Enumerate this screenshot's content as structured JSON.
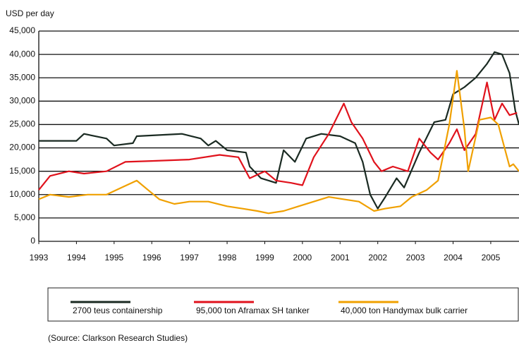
{
  "chart_data": {
    "type": "line",
    "y_label": "USD per day",
    "source": "(Source: Clarkson Research Studies)",
    "xlim": [
      1993,
      2005.75
    ],
    "xticks": [
      1993,
      1994,
      1995,
      1996,
      1997,
      1998,
      1999,
      2000,
      2001,
      2002,
      2003,
      2004,
      2005
    ],
    "ylim": [
      0,
      45000
    ],
    "yticks": [
      0,
      {
        "value": 5000,
        "label": "5,000"
      },
      {
        "value": 10000,
        "label": "10,000"
      },
      {
        "value": 15000,
        "label": "15,000"
      },
      {
        "value": 20000,
        "label": "20,000"
      },
      {
        "value": 25000,
        "label": "25,000"
      },
      {
        "value": 30000,
        "label": "30,000"
      },
      {
        "value": 35000,
        "label": "35,000"
      },
      {
        "value": 40000,
        "label": "40,000"
      },
      {
        "value": 45000,
        "label": "45,000"
      }
    ],
    "grid": true,
    "legend": "bottom",
    "series": [
      {
        "name": "2700 teus containership",
        "color": "#1a2a22",
        "x": [
          1993,
          1994,
          1994.2,
          1994.8,
          1995,
          1995.5,
          1995.6,
          1996.8,
          1997.3,
          1997.5,
          1997.7,
          1998,
          1998.5,
          1998.6,
          1998.9,
          1999.3,
          1999.5,
          1999.8,
          2000.1,
          2000.5,
          2001,
          2001.4,
          2001.6,
          2001.8,
          2002,
          2002.2,
          2002.5,
          2002.7,
          2003.1,
          2003.5,
          2003.8,
          2004,
          2004.3,
          2004.6,
          2004.9,
          2005.1,
          2005.3,
          2005.5,
          2005.65,
          2005.75
        ],
        "values": [
          21500,
          21500,
          23000,
          22000,
          20500,
          21000,
          22500,
          23000,
          22000,
          20500,
          21500,
          19500,
          19000,
          16000,
          13500,
          12500,
          19500,
          17000,
          22000,
          23000,
          22500,
          21000,
          17000,
          10000,
          7000,
          9500,
          13500,
          11500,
          19000,
          25500,
          26000,
          31500,
          33000,
          35000,
          38000,
          40500,
          40000,
          36000,
          28000,
          25000
        ]
      },
      {
        "name": "95,000 ton Aframax SH tanker",
        "color": "#e0121c",
        "x": [
          1993,
          1993.3,
          1993.8,
          1994.2,
          1994.8,
          1995.3,
          1996,
          1997,
          1997.8,
          1998.3,
          1998.6,
          1999,
          1999.3,
          1999.7,
          2000,
          2000.3,
          2000.7,
          2001.1,
          2001.3,
          2001.6,
          2001.9,
          2002.1,
          2002.4,
          2002.8,
          2003.1,
          2003.4,
          2003.6,
          2003.9,
          2004.1,
          2004.3,
          2004.6,
          2004.9,
          2005.1,
          2005.3,
          2005.5,
          2005.7
        ],
        "values": [
          11000,
          14000,
          15000,
          14500,
          15000,
          17000,
          17200,
          17500,
          18500,
          18000,
          13500,
          15000,
          13000,
          12500,
          12000,
          18000,
          23000,
          29500,
          25500,
          22000,
          17000,
          15000,
          16000,
          15000,
          22000,
          19000,
          17500,
          21000,
          24000,
          19500,
          23000,
          34000,
          26000,
          29500,
          27000,
          27500
        ]
      },
      {
        "name": "40,000 ton Handymax bulk carrier",
        "color": "#f0a000",
        "x": [
          1993,
          1993.3,
          1993.8,
          1994.3,
          1994.8,
          1995.2,
          1995.6,
          1995.9,
          1996.2,
          1996.6,
          1997,
          1997.5,
          1998,
          1998.4,
          1998.8,
          1999.1,
          1999.5,
          1999.9,
          2000.3,
          2000.7,
          2001.1,
          2001.5,
          2001.9,
          2002.2,
          2002.6,
          2002.9,
          2003.3,
          2003.6,
          2003.9,
          2004.1,
          2004.3,
          2004.4,
          2004.7,
          2005,
          2005.2,
          2005.5,
          2005.6,
          2005.75
        ],
        "values": [
          9000,
          10000,
          9500,
          10000,
          10000,
          11500,
          13000,
          11000,
          9000,
          8000,
          8500,
          8500,
          7500,
          7000,
          6500,
          6000,
          6500,
          7500,
          8500,
          9500,
          9000,
          8500,
          6500,
          7000,
          7500,
          9500,
          11000,
          13000,
          25000,
          36500,
          24000,
          15000,
          26000,
          26500,
          25000,
          16000,
          16500,
          15000
        ]
      }
    ]
  }
}
